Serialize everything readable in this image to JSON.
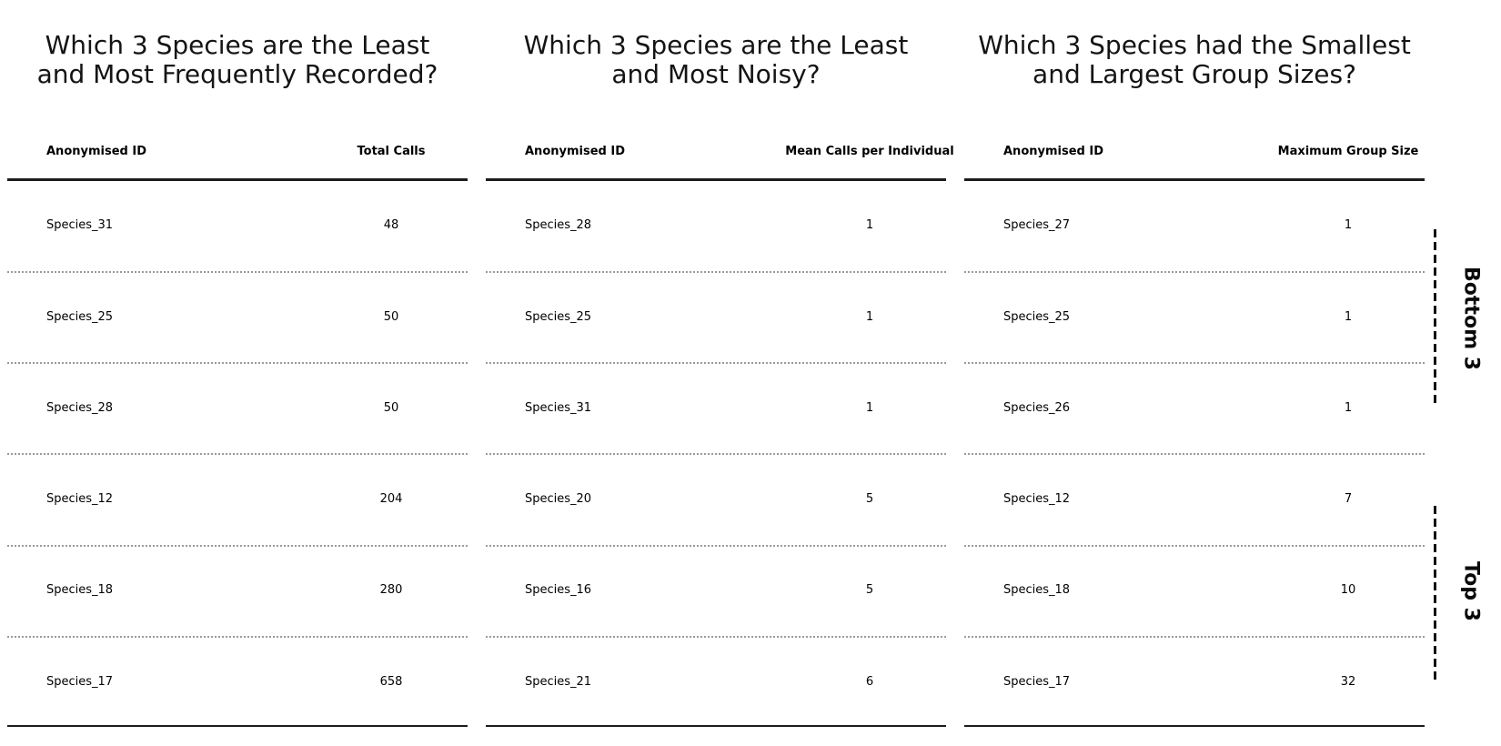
{
  "figure": {
    "background": "#ffffff",
    "text_color": "#000000",
    "rule_color": "#1c1c1c",
    "separator_color": "#9a9a9a",
    "annotation_line_color": "#111111"
  },
  "chart_data": [
    {
      "type": "table",
      "title": "Which 3 Species are the Least\nand Most Frequently Recorded?",
      "columns": [
        "Anonymised ID",
        "Total Calls"
      ],
      "rows": [
        [
          "Species_31",
          48
        ],
        [
          "Species_25",
          50
        ],
        [
          "Species_28",
          50
        ],
        [
          "Species_12",
          204
        ],
        [
          "Species_18",
          280
        ],
        [
          "Species_17",
          658
        ]
      ],
      "row_groups": {
        "bottom_3": [
          "Species_31",
          "Species_25",
          "Species_28"
        ],
        "top_3": [
          "Species_12",
          "Species_18",
          "Species_17"
        ]
      }
    },
    {
      "type": "table",
      "title": "Which 3 Species are the Least\nand Most Noisy?",
      "columns": [
        "Anonymised ID",
        "Mean Calls per Individual"
      ],
      "rows": [
        [
          "Species_28",
          1
        ],
        [
          "Species_25",
          1
        ],
        [
          "Species_31",
          1
        ],
        [
          "Species_20",
          5
        ],
        [
          "Species_16",
          5
        ],
        [
          "Species_21",
          6
        ]
      ],
      "row_groups": {
        "bottom_3": [
          "Species_28",
          "Species_25",
          "Species_31"
        ],
        "top_3": [
          "Species_20",
          "Species_16",
          "Species_21"
        ]
      }
    },
    {
      "type": "table",
      "title": "Which 3 Species had the Smallest\nand Largest Group Sizes?",
      "columns": [
        "Anonymised ID",
        "Maximum Group Size"
      ],
      "rows": [
        [
          "Species_27",
          1
        ],
        [
          "Species_25",
          1
        ],
        [
          "Species_26",
          1
        ],
        [
          "Species_12",
          7
        ],
        [
          "Species_18",
          10
        ],
        [
          "Species_17",
          32
        ]
      ],
      "row_groups": {
        "bottom_3": [
          "Species_27",
          "Species_25",
          "Species_26"
        ],
        "top_3": [
          "Species_12",
          "Species_18",
          "Species_17"
        ]
      }
    }
  ],
  "annotations": [
    {
      "label": "Bottom 3",
      "applies_to": "first three rows of each table"
    },
    {
      "label": "Top 3",
      "applies_to": "last three rows of each table"
    }
  ]
}
